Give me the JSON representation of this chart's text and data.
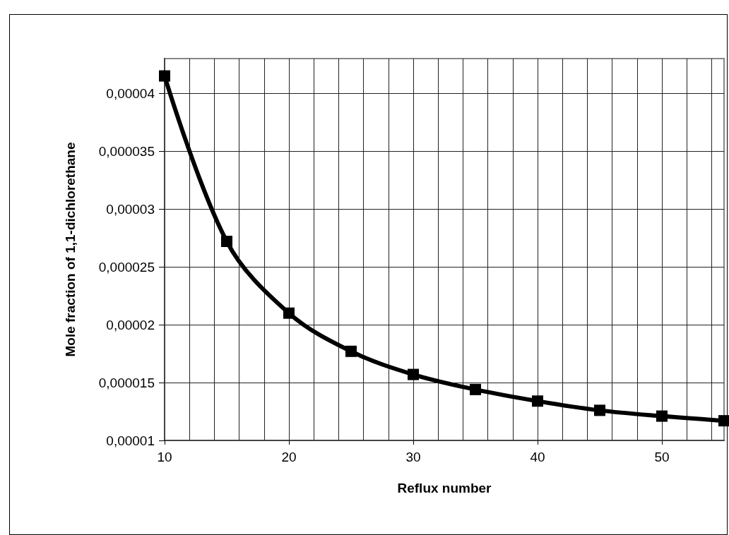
{
  "chart_data": {
    "type": "line",
    "xlabel": "Reflux number",
    "ylabel": "Mole fraction of 1,1-dichlorethane",
    "x": [
      10,
      15,
      20,
      25,
      30,
      35,
      40,
      45,
      50,
      55
    ],
    "series": [
      {
        "color": "#000000",
        "values": [
          4.15e-05,
          2.72e-05,
          2.1e-05,
          1.77e-05,
          1.57e-05,
          1.44e-05,
          1.34e-05,
          1.26e-05,
          1.21e-05,
          1.17e-05
        ]
      }
    ],
    "xlim": [
      10,
      55
    ],
    "xticks": [
      10,
      {
        "value": 12,
        "label": null
      },
      {
        "value": 14,
        "label": null
      },
      {
        "value": 16,
        "label": null
      },
      {
        "value": 18,
        "label": null
      },
      20,
      {
        "value": 22,
        "label": null
      },
      {
        "value": 24,
        "label": null
      },
      {
        "value": 26,
        "label": null
      },
      {
        "value": 28,
        "label": null
      },
      30,
      {
        "value": 32,
        "label": null
      },
      {
        "value": 34,
        "label": null
      },
      {
        "value": 36,
        "label": null
      },
      {
        "value": 38,
        "label": null
      },
      40,
      {
        "value": 42,
        "label": null
      },
      {
        "value": 44,
        "label": null
      },
      {
        "value": 46,
        "label": null
      },
      {
        "value": 48,
        "label": null
      },
      50,
      {
        "value": 52,
        "label": null
      },
      {
        "value": 54,
        "label": null
      }
    ],
    "ylim": [
      1e-05,
      4.3e-05
    ],
    "yticks": [
      {
        "value": 1e-05,
        "label": "0,00001"
      },
      {
        "value": 1.5e-05,
        "label": "0,000015"
      },
      {
        "value": 2e-05,
        "label": "0,00002"
      },
      {
        "value": 2.5e-05,
        "label": "0,000025"
      },
      {
        "value": 3e-05,
        "label": "0,00003"
      },
      {
        "value": 3.5e-05,
        "label": "0,000035"
      },
      {
        "value": 4e-05,
        "label": "0,00004"
      }
    ],
    "grid": true,
    "marker": "square",
    "line_style": "solid"
  }
}
